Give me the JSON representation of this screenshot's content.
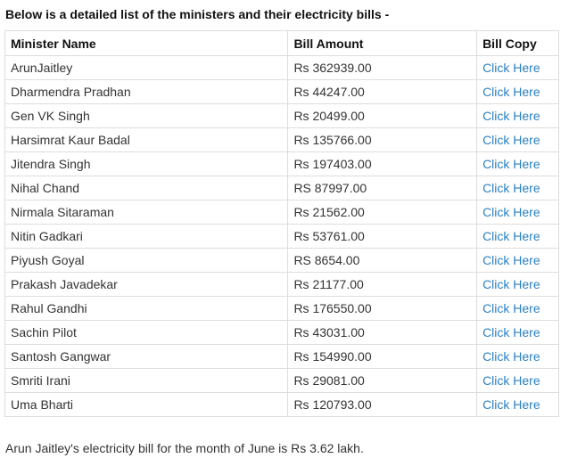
{
  "heading": "Below is a detailed list of the ministers and their electricity bills -",
  "table": {
    "headers": [
      "Minister Name",
      "Bill Amount",
      "Bill Copy"
    ],
    "rows": [
      {
        "name": "ArunJaitley",
        "amount": "Rs 362939.00",
        "link": "Click Here"
      },
      {
        "name": "Dharmendra Pradhan",
        "amount": "Rs 44247.00",
        "link": "Click Here"
      },
      {
        "name": "Gen VK Singh",
        "amount": "Rs 20499.00",
        "link": "Click Here"
      },
      {
        "name": "Harsimrat Kaur Badal",
        "amount": "Rs 135766.00",
        "link": "Click Here"
      },
      {
        "name": "Jitendra Singh",
        "amount": "Rs 197403.00",
        "link": "Click Here"
      },
      {
        "name": "Nihal Chand",
        "amount": "RS 87997.00",
        "link": "Click Here"
      },
      {
        "name": "Nirmala Sitaraman",
        "amount": "Rs 21562.00",
        "link": "Click Here"
      },
      {
        "name": "Nitin Gadkari",
        "amount": "Rs 53761.00",
        "link": "Click Here"
      },
      {
        "name": "Piyush Goyal",
        "amount": "RS 8654.00",
        "link": "Click Here"
      },
      {
        "name": "Prakash Javadekar",
        "amount": "Rs 21177.00",
        "link": "Click Here"
      },
      {
        "name": "Rahul Gandhi",
        "amount": "Rs 176550.00",
        "link": "Click Here"
      },
      {
        "name": "Sachin Pilot",
        "amount": "Rs 43031.00",
        "link": "Click Here"
      },
      {
        "name": "Santosh Gangwar",
        "amount": "Rs 154990.00",
        "link": "Click Here"
      },
      {
        "name": "Smriti Irani",
        "amount": "Rs 29081.00",
        "link": "Click Here"
      },
      {
        "name": "Uma Bharti",
        "amount": "Rs 120793.00",
        "link": "Click Here"
      }
    ]
  },
  "footer_note": "Arun Jaitley's electricity bill for the month of June is Rs 3.62 lakh.",
  "colors": {
    "link": "#2a7fc4",
    "border": "#dddddd"
  }
}
